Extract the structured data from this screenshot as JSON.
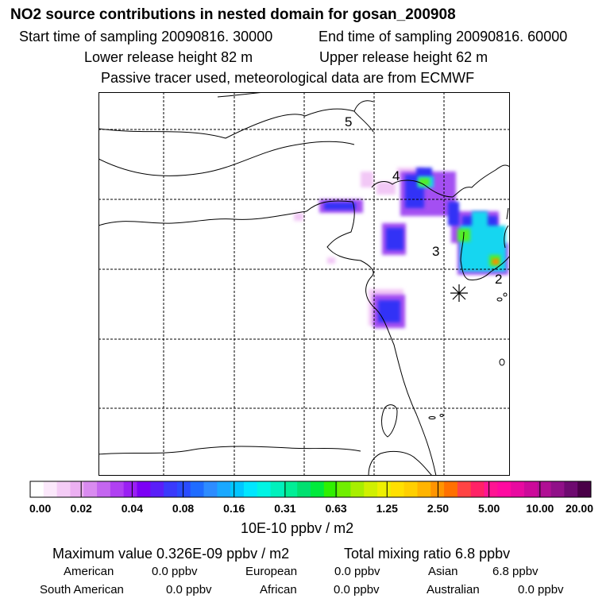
{
  "title": "NO2 source contributions in nested domain for gosan_200908",
  "sampling": {
    "start": "Start time of sampling 20090816. 30000",
    "end": "End time of sampling 20090816. 60000"
  },
  "release": {
    "lower": "Lower release height   82 m",
    "upper": "Upper release height   62 m"
  },
  "info": "Passive tracer used, meteorological data are from ECMWF",
  "map": {
    "markers": [
      "5",
      "4",
      "3",
      "2"
    ],
    "receptor_symbol": "asterisk"
  },
  "colorbar": {
    "tick_labels": [
      "0.00",
      "0.02",
      "0.04",
      "0.08",
      "0.16",
      "0.31",
      "0.63",
      "1.25",
      "2.50",
      "5.00",
      "10.00",
      "20.00"
    ],
    "colors": [
      "#ffffff",
      "#fbe8fb",
      "#f4ccf6",
      "#ecb0f2",
      "#d98bf0",
      "#c466f0",
      "#b040f2",
      "#9a1ff3",
      "#7c00f5",
      "#5a1ff8",
      "#3a3afb",
      "#2a4cff",
      "#1f6cff",
      "#2d8cff",
      "#1aa8ff",
      "#00c6ff",
      "#00e6ff",
      "#00f4e4",
      "#00f0bc",
      "#00ee96",
      "#00e070",
      "#00ea3c",
      "#30f000",
      "#70ee00",
      "#a8ee00",
      "#d0f000",
      "#eef000",
      "#ffe000",
      "#ffcf00",
      "#ffb400",
      "#ff9400",
      "#ff7000",
      "#ff4444",
      "#ff2266",
      "#ff1493",
      "#ff0aa0",
      "#e80aa0",
      "#cc0a9a",
      "#b01094",
      "#901088",
      "#6e0a70",
      "#4a0048"
    ],
    "unit": "10E-10 ppbv / m2"
  },
  "stats": {
    "max_label": "Maximum value  0.326E-09 ppbv / m2",
    "total_label": "Total mixing ratio        6.8 ppbv",
    "sources": [
      {
        "name": "American",
        "value": "0.0 ppbv"
      },
      {
        "name": "European",
        "value": "0.0 ppbv"
      },
      {
        "name": "Asian",
        "value": "6.8 ppbv"
      },
      {
        "name": "South American",
        "value": "0.0 ppbv"
      },
      {
        "name": "African",
        "value": "0.0 ppbv"
      },
      {
        "name": "Australian",
        "value": "0.0 ppbv"
      }
    ]
  }
}
